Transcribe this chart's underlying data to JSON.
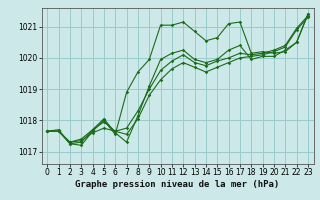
{
  "xlabel": "Graphe pression niveau de la mer (hPa)",
  "bg_color": "#cce8e8",
  "grid_color": "#99cccc",
  "line_color": "#1a6b1a",
  "xlim": [
    -0.5,
    23.5
  ],
  "ylim": [
    1016.6,
    1021.6
  ],
  "yticks": [
    1017,
    1018,
    1019,
    1020,
    1021
  ],
  "xticks": [
    0,
    1,
    2,
    3,
    4,
    5,
    6,
    7,
    8,
    9,
    10,
    11,
    12,
    13,
    14,
    15,
    16,
    17,
    18,
    19,
    20,
    21,
    22,
    23
  ],
  "series1_x": [
    0,
    1,
    2,
    3,
    4,
    5,
    6,
    7,
    8,
    9,
    10,
    11,
    12,
    13,
    14,
    15,
    16,
    17,
    18,
    19,
    20,
    21,
    22,
    23
  ],
  "series1_y": [
    1017.65,
    1017.65,
    1017.3,
    1017.35,
    1017.6,
    1017.75,
    1017.65,
    1017.55,
    1018.05,
    1018.8,
    1019.3,
    1019.65,
    1019.85,
    1019.7,
    1019.55,
    1019.7,
    1019.85,
    1020.0,
    1020.05,
    1020.1,
    1020.2,
    1020.35,
    1020.9,
    1021.3
  ],
  "series2_x": [
    0,
    1,
    2,
    3,
    4,
    5,
    6,
    7,
    8,
    9,
    10,
    11,
    12,
    13,
    14,
    15,
    16,
    17,
    18,
    19,
    20,
    21,
    22,
    23
  ],
  "series2_y": [
    1017.65,
    1017.65,
    1017.3,
    1017.4,
    1017.7,
    1017.95,
    1017.65,
    1017.75,
    1018.3,
    1019.0,
    1019.6,
    1019.9,
    1020.1,
    1019.85,
    1019.75,
    1019.9,
    1020.0,
    1020.15,
    1020.1,
    1020.15,
    1020.25,
    1020.4,
    1020.95,
    1021.35
  ],
  "series3_x": [
    0,
    1,
    2,
    3,
    4,
    5,
    6,
    7,
    8,
    9,
    10,
    11,
    12,
    13,
    14,
    15,
    16,
    17,
    18,
    19,
    20,
    21,
    22,
    23
  ],
  "series3_y": [
    1017.65,
    1017.65,
    1017.25,
    1017.2,
    1017.65,
    1018.0,
    1017.55,
    1018.9,
    1019.55,
    1019.95,
    1021.05,
    1021.05,
    1021.15,
    1020.85,
    1020.55,
    1020.65,
    1021.1,
    1021.15,
    1020.15,
    1020.2,
    1020.15,
    1020.2,
    1020.5,
    1021.4
  ],
  "series4_x": [
    0,
    1,
    2,
    3,
    4,
    5,
    6,
    7,
    8,
    9,
    10,
    11,
    12,
    13,
    14,
    15,
    16,
    17,
    18,
    19,
    20,
    21,
    22,
    23
  ],
  "series4_y": [
    1017.65,
    1017.7,
    1017.25,
    1017.3,
    1017.7,
    1018.05,
    1017.6,
    1017.3,
    1018.15,
    1019.1,
    1019.95,
    1020.15,
    1020.25,
    1019.95,
    1019.85,
    1019.95,
    1020.25,
    1020.4,
    1019.95,
    1020.05,
    1020.05,
    1020.25,
    1020.5,
    1021.4
  ],
  "marker_size": 1.8,
  "line_width": 0.8,
  "xlabel_fontsize": 6.5,
  "tick_fontsize": 5.5
}
